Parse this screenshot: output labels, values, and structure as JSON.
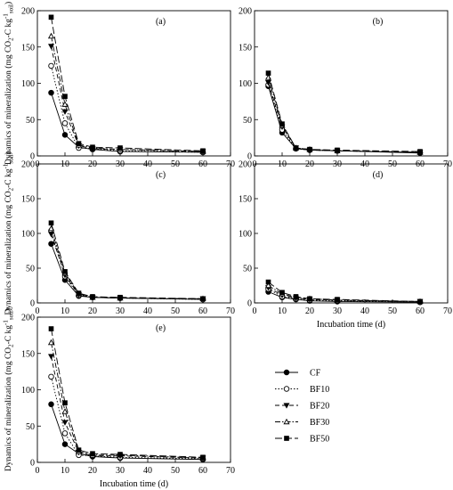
{
  "y_label_text": "Dynamics of mineralization (mg CO",
  "y_label_sub2": "2",
  "y_label_mid": "-C kg",
  "y_label_sup": "-1",
  "y_label_tail": "soil",
  "y_label_close": ")",
  "x_label_text": "Incubation time (d)",
  "chart_data": [
    {
      "type": "line",
      "panel_label": "(a)",
      "x": [
        5,
        10,
        15,
        20,
        30,
        60
      ],
      "xlim": [
        0,
        70
      ],
      "ylim": [
        0,
        200
      ],
      "xticks": [
        0,
        10,
        20,
        30,
        40,
        50,
        60,
        70
      ],
      "yticks": [
        0,
        50,
        100,
        150,
        200
      ],
      "series": [
        {
          "name": "CF",
          "values": [
            87,
            29,
            12,
            9,
            6,
            5
          ]
        },
        {
          "name": "BF10",
          "values": [
            124,
            45,
            11,
            10,
            7,
            5
          ]
        },
        {
          "name": "BF20",
          "values": [
            151,
            61,
            14,
            10,
            9,
            6
          ]
        },
        {
          "name": "BF30",
          "values": [
            165,
            71,
            15,
            11,
            9,
            6
          ]
        },
        {
          "name": "BF50",
          "values": [
            191,
            82,
            17,
            12,
            11,
            7
          ]
        }
      ]
    },
    {
      "type": "line",
      "panel_label": "(b)",
      "x": [
        5,
        10,
        15,
        20,
        30,
        60
      ],
      "xlim": [
        0,
        70
      ],
      "ylim": [
        0,
        200
      ],
      "xticks": [
        0,
        10,
        20,
        30,
        40,
        50,
        60,
        70
      ],
      "yticks": [
        0,
        50,
        100,
        150,
        200
      ],
      "series": [
        {
          "name": "CF",
          "values": [
            96,
            32,
            10,
            8,
            7,
            4
          ]
        },
        {
          "name": "BF10",
          "values": [
            98,
            36,
            10,
            8,
            7,
            5
          ]
        },
        {
          "name": "BF20",
          "values": [
            101,
            40,
            11,
            8,
            7,
            5
          ]
        },
        {
          "name": "BF30",
          "values": [
            108,
            42,
            11,
            9,
            7,
            5
          ]
        },
        {
          "name": "BF50",
          "values": [
            114,
            44,
            11,
            9,
            8,
            6
          ]
        }
      ]
    },
    {
      "type": "line",
      "panel_label": "(c)",
      "x": [
        5,
        10,
        15,
        20,
        30,
        60
      ],
      "xlim": [
        0,
        70
      ],
      "ylim": [
        0,
        200
      ],
      "xticks": [
        0,
        10,
        20,
        30,
        40,
        50,
        60,
        70
      ],
      "yticks": [
        0,
        50,
        100,
        150,
        200
      ],
      "series": [
        {
          "name": "CF",
          "values": [
            85,
            33,
            10,
            8,
            7,
            5
          ]
        },
        {
          "name": "BF10",
          "values": [
            104,
            38,
            11,
            8,
            7,
            5
          ]
        },
        {
          "name": "BF20",
          "values": [
            99,
            40,
            12,
            8,
            7,
            6
          ]
        },
        {
          "name": "BF30",
          "values": [
            107,
            43,
            13,
            8,
            7,
            6
          ]
        },
        {
          "name": "BF50",
          "values": [
            115,
            45,
            14,
            9,
            8,
            6
          ]
        }
      ]
    },
    {
      "type": "line",
      "panel_label": "(d)",
      "x": [
        5,
        10,
        15,
        20,
        30,
        60
      ],
      "xlim": [
        0,
        70
      ],
      "ylim": [
        0,
        200
      ],
      "xticks": [
        0,
        10,
        20,
        30,
        40,
        50,
        60,
        70
      ],
      "yticks": [
        0,
        50,
        100,
        150,
        200
      ],
      "series": [
        {
          "name": "CF",
          "values": [
            16,
            8,
            5,
            3,
            2,
            1
          ]
        },
        {
          "name": "BF10",
          "values": [
            20,
            9,
            6,
            4,
            3,
            1
          ]
        },
        {
          "name": "BF20",
          "values": [
            22,
            11,
            7,
            5,
            4,
            2
          ]
        },
        {
          "name": "BF30",
          "values": [
            25,
            13,
            8,
            6,
            4,
            2
          ]
        },
        {
          "name": "BF50",
          "values": [
            30,
            15,
            9,
            6,
            5,
            2
          ]
        }
      ]
    },
    {
      "type": "line",
      "panel_label": "(e)",
      "x": [
        5,
        10,
        15,
        20,
        30,
        60
      ],
      "xlim": [
        0,
        70
      ],
      "ylim": [
        0,
        200
      ],
      "xticks": [
        0,
        10,
        20,
        30,
        40,
        50,
        60,
        70
      ],
      "yticks": [
        0,
        50,
        100,
        150,
        200
      ],
      "series": [
        {
          "name": "CF",
          "values": [
            80,
            25,
            12,
            8,
            6,
            4
          ]
        },
        {
          "name": "BF10",
          "values": [
            118,
            40,
            10,
            9,
            7,
            5
          ]
        },
        {
          "name": "BF20",
          "values": [
            146,
            55,
            14,
            9,
            9,
            6
          ]
        },
        {
          "name": "BF30",
          "values": [
            165,
            70,
            15,
            10,
            10,
            6
          ]
        },
        {
          "name": "BF50",
          "values": [
            184,
            82,
            17,
            12,
            11,
            7
          ]
        }
      ]
    }
  ],
  "styles": [
    {
      "marker": "circle-filled",
      "dash": "none",
      "color": "#000000"
    },
    {
      "marker": "circle-open",
      "dash": "dotted",
      "color": "#000000"
    },
    {
      "marker": "triangle-down-filled",
      "dash": "dashed",
      "color": "#000000"
    },
    {
      "marker": "triangle-up-open",
      "dash": "dashdot",
      "color": "#000000"
    },
    {
      "marker": "square-filled",
      "dash": "longdash",
      "color": "#000000"
    }
  ]
}
